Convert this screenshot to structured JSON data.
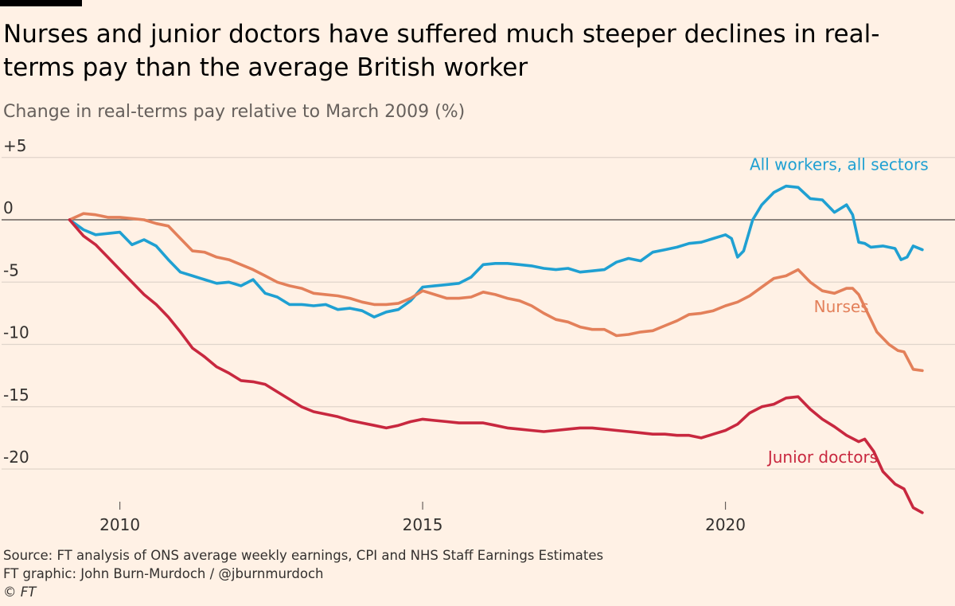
{
  "title": "Nurses and junior doctors have suffered much steeper declines in real-terms pay than the average British worker",
  "subtitle": "Change in real-terms pay relative to March 2009 (%)",
  "source_lines": [
    "Source: FT analysis of ONS average weekly earnings, CPI and NHS Staff Earnings Estimates",
    "FT graphic: John Burn-Murdoch / @jburnmurdoch",
    "© FT"
  ],
  "colors": {
    "all_workers": "#1FA0D2",
    "nurses": "#E3805A",
    "junior_doctors": "#C8283F",
    "grid": "#E0D5CB",
    "zero_line": "#66605C",
    "axis_text": "#33302E"
  },
  "chart_data": {
    "type": "line",
    "title": "Nurses and junior doctors have suffered much steeper declines in real-terms pay than the average British worker",
    "ylabel": "Change in real-terms pay relative to March 2009 (%)",
    "xlim": [
      2009.0,
      2023.6
    ],
    "ylim": [
      -24,
      5
    ],
    "y_ticks": [
      5,
      0,
      -5,
      -10,
      -15,
      -20
    ],
    "y_tick_labels": [
      "+5",
      "0",
      "-5",
      "-10",
      "-15",
      "-20"
    ],
    "x_ticks": [
      2010,
      2015,
      2020
    ],
    "x_tick_labels": [
      "2010",
      "2015",
      "2020"
    ],
    "grid": "horizontal",
    "series": [
      {
        "name": "All workers, all sectors",
        "color_key": "all_workers",
        "x": [
          2009.17,
          2009.4,
          2009.6,
          2009.8,
          2010.0,
          2010.2,
          2010.4,
          2010.6,
          2010.8,
          2011.0,
          2011.2,
          2011.4,
          2011.6,
          2011.8,
          2012.0,
          2012.2,
          2012.4,
          2012.6,
          2012.8,
          2013.0,
          2013.2,
          2013.4,
          2013.6,
          2013.8,
          2014.0,
          2014.2,
          2014.4,
          2014.6,
          2014.8,
          2015.0,
          2015.2,
          2015.4,
          2015.6,
          2015.8,
          2016.0,
          2016.2,
          2016.4,
          2016.6,
          2016.8,
          2017.0,
          2017.2,
          2017.4,
          2017.6,
          2017.8,
          2018.0,
          2018.2,
          2018.4,
          2018.6,
          2018.8,
          2019.0,
          2019.2,
          2019.4,
          2019.6,
          2019.8,
          2020.0,
          2020.1,
          2020.2,
          2020.3,
          2020.45,
          2020.6,
          2020.8,
          2021.0,
          2021.2,
          2021.4,
          2021.6,
          2021.8,
          2022.0,
          2022.1,
          2022.2,
          2022.3,
          2022.4,
          2022.6,
          2022.8,
          2022.9,
          2023.0,
          2023.1,
          2023.25
        ],
        "y": [
          0,
          -0.8,
          -1.2,
          -1.1,
          -1.0,
          -2.0,
          -1.6,
          -2.1,
          -3.2,
          -4.2,
          -4.5,
          -4.8,
          -5.1,
          -5.0,
          -5.3,
          -4.8,
          -5.9,
          -6.2,
          -6.8,
          -6.8,
          -6.9,
          -6.8,
          -7.2,
          -7.1,
          -7.3,
          -7.8,
          -7.4,
          -7.2,
          -6.5,
          -5.4,
          -5.3,
          -5.2,
          -5.1,
          -4.6,
          -3.6,
          -3.5,
          -3.5,
          -3.6,
          -3.7,
          -3.9,
          -4.0,
          -3.9,
          -4.2,
          -4.1,
          -4.0,
          -3.4,
          -3.1,
          -3.3,
          -2.6,
          -2.4,
          -2.2,
          -1.9,
          -1.8,
          -1.5,
          -1.2,
          -1.5,
          -3.0,
          -2.5,
          0.0,
          1.2,
          2.2,
          2.7,
          2.6,
          1.7,
          1.6,
          0.6,
          1.2,
          0.4,
          -1.8,
          -1.9,
          -2.2,
          -2.1,
          -2.3,
          -3.2,
          -3.0,
          -2.1,
          -2.4
        ]
      },
      {
        "name": "Nurses",
        "color_key": "nurses",
        "x": [
          2009.17,
          2009.4,
          2009.6,
          2009.8,
          2010.0,
          2010.2,
          2010.4,
          2010.6,
          2010.8,
          2011.0,
          2011.2,
          2011.4,
          2011.6,
          2011.8,
          2012.0,
          2012.2,
          2012.4,
          2012.6,
          2012.8,
          2013.0,
          2013.2,
          2013.4,
          2013.6,
          2013.8,
          2014.0,
          2014.2,
          2014.4,
          2014.6,
          2014.8,
          2015.0,
          2015.2,
          2015.4,
          2015.6,
          2015.8,
          2016.0,
          2016.2,
          2016.4,
          2016.6,
          2016.8,
          2017.0,
          2017.2,
          2017.4,
          2017.6,
          2017.8,
          2018.0,
          2018.2,
          2018.4,
          2018.6,
          2018.8,
          2019.0,
          2019.2,
          2019.4,
          2019.6,
          2019.8,
          2020.0,
          2020.2,
          2020.4,
          2020.6,
          2020.8,
          2021.0,
          2021.2,
          2021.4,
          2021.6,
          2021.8,
          2022.0,
          2022.1,
          2022.2,
          2022.3,
          2022.4,
          2022.5,
          2022.7,
          2022.85,
          2022.95,
          2023.1,
          2023.25
        ],
        "y": [
          0,
          0.5,
          0.4,
          0.2,
          0.2,
          0.1,
          0.0,
          -0.3,
          -0.5,
          -1.5,
          -2.5,
          -2.6,
          -3.0,
          -3.2,
          -3.6,
          -4.0,
          -4.5,
          -5.0,
          -5.3,
          -5.5,
          -5.9,
          -6.0,
          -6.1,
          -6.3,
          -6.6,
          -6.8,
          -6.8,
          -6.7,
          -6.3,
          -5.7,
          -6.0,
          -6.3,
          -6.3,
          -6.2,
          -5.8,
          -6.0,
          -6.3,
          -6.5,
          -6.9,
          -7.5,
          -8.0,
          -8.2,
          -8.6,
          -8.8,
          -8.8,
          -9.3,
          -9.2,
          -9.0,
          -8.9,
          -8.5,
          -8.1,
          -7.6,
          -7.5,
          -7.3,
          -6.9,
          -6.6,
          -6.1,
          -5.4,
          -4.7,
          -4.5,
          -4.0,
          -5.0,
          -5.7,
          -5.9,
          -5.5,
          -5.5,
          -6.0,
          -7.0,
          -8.0,
          -9.0,
          -10.0,
          -10.5,
          -10.6,
          -12.0,
          -12.1
        ]
      },
      {
        "name": "Junior doctors",
        "color_key": "junior_doctors",
        "x": [
          2009.17,
          2009.4,
          2009.6,
          2009.8,
          2010.0,
          2010.2,
          2010.4,
          2010.6,
          2010.8,
          2011.0,
          2011.2,
          2011.4,
          2011.6,
          2011.8,
          2012.0,
          2012.2,
          2012.4,
          2012.6,
          2012.8,
          2013.0,
          2013.2,
          2013.4,
          2013.6,
          2013.8,
          2014.0,
          2014.2,
          2014.4,
          2014.6,
          2014.8,
          2015.0,
          2015.2,
          2015.4,
          2015.6,
          2015.8,
          2016.0,
          2016.2,
          2016.4,
          2016.6,
          2016.8,
          2017.0,
          2017.2,
          2017.4,
          2017.6,
          2017.8,
          2018.0,
          2018.2,
          2018.4,
          2018.6,
          2018.8,
          2019.0,
          2019.2,
          2019.4,
          2019.6,
          2019.8,
          2020.0,
          2020.2,
          2020.4,
          2020.6,
          2020.8,
          2021.0,
          2021.2,
          2021.4,
          2021.6,
          2021.8,
          2022.0,
          2022.2,
          2022.3,
          2022.45,
          2022.6,
          2022.8,
          2022.95,
          2023.1,
          2023.25
        ],
        "y": [
          0,
          -1.3,
          -2.0,
          -3.0,
          -4.0,
          -5.0,
          -6.0,
          -6.8,
          -7.8,
          -9.0,
          -10.3,
          -11.0,
          -11.8,
          -12.3,
          -12.9,
          -13.0,
          -13.2,
          -13.8,
          -14.4,
          -15.0,
          -15.4,
          -15.6,
          -15.8,
          -16.1,
          -16.3,
          -16.5,
          -16.7,
          -16.5,
          -16.2,
          -16.0,
          -16.1,
          -16.2,
          -16.3,
          -16.3,
          -16.3,
          -16.5,
          -16.7,
          -16.8,
          -16.9,
          -17.0,
          -16.9,
          -16.8,
          -16.7,
          -16.7,
          -16.8,
          -16.9,
          -17.0,
          -17.1,
          -17.2,
          -17.2,
          -17.3,
          -17.3,
          -17.5,
          -17.2,
          -16.9,
          -16.4,
          -15.5,
          -15.0,
          -14.8,
          -14.3,
          -14.2,
          -15.2,
          -16.0,
          -16.6,
          -17.3,
          -17.8,
          -17.6,
          -18.6,
          -20.2,
          -21.2,
          -21.6,
          -23.1,
          -23.5
        ]
      }
    ],
    "series_labels": [
      {
        "text": "All workers, all sectors",
        "color_key": "all_workers",
        "x": 2020.4,
        "y": 4.0
      },
      {
        "text": "Nurses",
        "color_key": "nurses",
        "x": 2021.46,
        "y": -7.4
      },
      {
        "text": "Junior doctors",
        "color_key": "junior_doctors",
        "x": 2020.7,
        "y": -19.5
      }
    ]
  }
}
